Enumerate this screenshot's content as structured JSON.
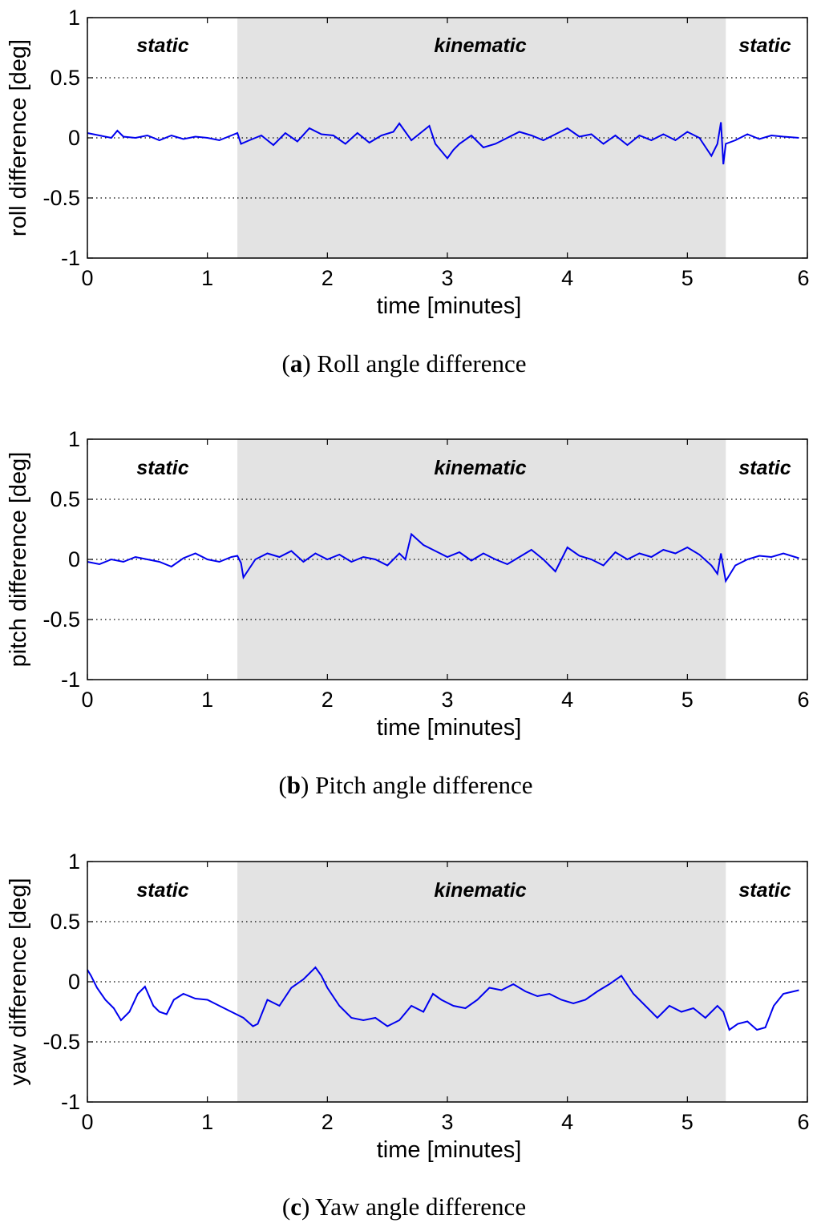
{
  "chart_data": [
    {
      "type": "line",
      "panel_key": "roll",
      "caption_letter": "a",
      "caption_text": "Roll angle difference",
      "xlabel": "time [minutes]",
      "ylabel": "roll difference [deg]",
      "xlim": [
        0,
        6
      ],
      "ylim": [
        -1,
        1
      ],
      "xticks": [
        "0",
        "1",
        "2",
        "3",
        "4",
        "5",
        "6"
      ],
      "yticks": [
        "1",
        "0.5",
        "0",
        "-0.5",
        "-1"
      ],
      "grid_y": [
        0.5,
        0,
        -0.5
      ],
      "line_color": "#0000ee",
      "shaded_region": {
        "x_start": 1.25,
        "x_end": 5.32,
        "color": "#e3e3e3"
      },
      "region_labels": [
        {
          "text": "static",
          "x": 0.63
        },
        {
          "text": "kinematic",
          "x": 3.29
        },
        {
          "text": "static",
          "x": 5.65
        }
      ],
      "series": [
        {
          "name": "roll difference",
          "x": [
            0,
            0.1,
            0.2,
            0.25,
            0.3,
            0.4,
            0.5,
            0.6,
            0.7,
            0.8,
            0.9,
            1.0,
            1.1,
            1.2,
            1.25,
            1.28,
            1.35,
            1.45,
            1.55,
            1.65,
            1.75,
            1.85,
            1.95,
            2.05,
            2.15,
            2.25,
            2.35,
            2.45,
            2.55,
            2.6,
            2.7,
            2.8,
            2.85,
            2.9,
            3.0,
            3.05,
            3.1,
            3.2,
            3.3,
            3.4,
            3.5,
            3.6,
            3.7,
            3.8,
            3.9,
            4.0,
            4.1,
            4.2,
            4.3,
            4.4,
            4.5,
            4.6,
            4.7,
            4.8,
            4.9,
            5.0,
            5.1,
            5.2,
            5.25,
            5.28,
            5.3,
            5.32,
            5.4,
            5.5,
            5.6,
            5.7,
            5.8,
            5.93
          ],
          "values": [
            0.04,
            0.02,
            0.0,
            0.06,
            0.01,
            0.0,
            0.02,
            -0.02,
            0.02,
            -0.01,
            0.01,
            0.0,
            -0.02,
            0.02,
            0.04,
            -0.05,
            -0.02,
            0.02,
            -0.06,
            0.04,
            -0.03,
            0.08,
            0.03,
            0.02,
            -0.05,
            0.04,
            -0.04,
            0.02,
            0.05,
            0.12,
            -0.02,
            0.06,
            0.1,
            -0.05,
            -0.17,
            -0.1,
            -0.05,
            0.02,
            -0.08,
            -0.05,
            0.0,
            0.05,
            0.02,
            -0.02,
            0.03,
            0.08,
            0.01,
            0.03,
            -0.05,
            0.02,
            -0.06,
            0.02,
            -0.02,
            0.03,
            -0.02,
            0.05,
            0.0,
            -0.15,
            -0.05,
            0.13,
            -0.22,
            -0.05,
            -0.02,
            0.03,
            -0.01,
            0.02,
            0.01,
            0.0
          ]
        }
      ]
    },
    {
      "type": "line",
      "panel_key": "pitch",
      "caption_letter": "b",
      "caption_text": "Pitch angle difference",
      "xlabel": "time [minutes]",
      "ylabel": "pitch difference [deg]",
      "xlim": [
        0,
        6
      ],
      "ylim": [
        -1,
        1
      ],
      "xticks": [
        "0",
        "1",
        "2",
        "3",
        "4",
        "5",
        "6"
      ],
      "yticks": [
        "1",
        "0.5",
        "0",
        "-0.5",
        "-1"
      ],
      "grid_y": [
        0.5,
        0,
        -0.5
      ],
      "line_color": "#0000ee",
      "shaded_region": {
        "x_start": 1.25,
        "x_end": 5.32,
        "color": "#e3e3e3"
      },
      "region_labels": [
        {
          "text": "static",
          "x": 0.63
        },
        {
          "text": "kinematic",
          "x": 3.29
        },
        {
          "text": "static",
          "x": 5.65
        }
      ],
      "series": [
        {
          "name": "pitch difference",
          "x": [
            0,
            0.1,
            0.2,
            0.3,
            0.4,
            0.5,
            0.6,
            0.7,
            0.8,
            0.9,
            1.0,
            1.1,
            1.2,
            1.25,
            1.28,
            1.3,
            1.4,
            1.5,
            1.6,
            1.7,
            1.8,
            1.9,
            2.0,
            2.1,
            2.2,
            2.3,
            2.4,
            2.5,
            2.6,
            2.65,
            2.7,
            2.8,
            2.9,
            3.0,
            3.1,
            3.2,
            3.3,
            3.4,
            3.5,
            3.6,
            3.7,
            3.8,
            3.9,
            4.0,
            4.1,
            4.2,
            4.3,
            4.4,
            4.5,
            4.6,
            4.7,
            4.8,
            4.9,
            5.0,
            5.1,
            5.2,
            5.25,
            5.28,
            5.32,
            5.4,
            5.5,
            5.6,
            5.7,
            5.8,
            5.93
          ],
          "values": [
            -0.02,
            -0.04,
            0.0,
            -0.02,
            0.02,
            0.0,
            -0.02,
            -0.06,
            0.01,
            0.05,
            0.0,
            -0.02,
            0.02,
            0.03,
            -0.03,
            -0.15,
            0.0,
            0.05,
            0.02,
            0.07,
            -0.02,
            0.05,
            0.0,
            0.04,
            -0.02,
            0.02,
            0.0,
            -0.05,
            0.05,
            0.0,
            0.21,
            0.12,
            0.07,
            0.02,
            0.06,
            -0.01,
            0.05,
            0.0,
            -0.04,
            0.02,
            0.08,
            0.0,
            -0.1,
            0.1,
            0.03,
            0.0,
            -0.05,
            0.06,
            0.0,
            0.05,
            0.02,
            0.08,
            0.05,
            0.1,
            0.04,
            -0.05,
            -0.12,
            0.05,
            -0.18,
            -0.05,
            0.0,
            0.03,
            0.02,
            0.05,
            0.01
          ]
        }
      ]
    },
    {
      "type": "line",
      "panel_key": "yaw",
      "caption_letter": "c",
      "caption_text": "Yaw angle difference",
      "xlabel": "time [minutes]",
      "ylabel": "yaw difference [deg]",
      "xlim": [
        0,
        6
      ],
      "ylim": [
        -1,
        1
      ],
      "xticks": [
        "0",
        "1",
        "2",
        "3",
        "4",
        "5",
        "6"
      ],
      "yticks": [
        "1",
        "0.5",
        "0",
        "-0.5",
        "-1"
      ],
      "grid_y": [
        0.5,
        0,
        -0.5
      ],
      "line_color": "#0000ee",
      "shaded_region": {
        "x_start": 1.25,
        "x_end": 5.32,
        "color": "#e3e3e3"
      },
      "region_labels": [
        {
          "text": "static",
          "x": 0.63
        },
        {
          "text": "kinematic",
          "x": 3.29
        },
        {
          "text": "static",
          "x": 5.65
        }
      ],
      "series": [
        {
          "name": "yaw difference",
          "x": [
            0,
            0.03,
            0.08,
            0.15,
            0.22,
            0.28,
            0.35,
            0.42,
            0.48,
            0.55,
            0.6,
            0.66,
            0.72,
            0.8,
            0.9,
            1.0,
            1.1,
            1.2,
            1.3,
            1.38,
            1.42,
            1.5,
            1.6,
            1.7,
            1.8,
            1.9,
            1.95,
            2.0,
            2.1,
            2.2,
            2.3,
            2.4,
            2.5,
            2.6,
            2.7,
            2.8,
            2.88,
            2.95,
            3.05,
            3.15,
            3.25,
            3.35,
            3.45,
            3.55,
            3.65,
            3.75,
            3.85,
            3.95,
            4.05,
            4.15,
            4.25,
            4.35,
            4.45,
            4.55,
            4.65,
            4.75,
            4.85,
            4.95,
            5.05,
            5.15,
            5.25,
            5.3,
            5.35,
            5.42,
            5.5,
            5.58,
            5.65,
            5.72,
            5.8,
            5.93
          ],
          "values": [
            0.1,
            0.05,
            -0.05,
            -0.15,
            -0.22,
            -0.32,
            -0.25,
            -0.1,
            -0.04,
            -0.2,
            -0.25,
            -0.27,
            -0.15,
            -0.1,
            -0.14,
            -0.15,
            -0.2,
            -0.25,
            -0.3,
            -0.37,
            -0.35,
            -0.15,
            -0.2,
            -0.05,
            0.02,
            0.12,
            0.05,
            -0.05,
            -0.2,
            -0.3,
            -0.32,
            -0.3,
            -0.37,
            -0.32,
            -0.2,
            -0.25,
            -0.1,
            -0.15,
            -0.2,
            -0.22,
            -0.15,
            -0.05,
            -0.07,
            -0.02,
            -0.08,
            -0.12,
            -0.1,
            -0.15,
            -0.18,
            -0.15,
            -0.08,
            -0.02,
            0.05,
            -0.1,
            -0.2,
            -0.3,
            -0.2,
            -0.25,
            -0.22,
            -0.3,
            -0.2,
            -0.25,
            -0.4,
            -0.35,
            -0.33,
            -0.4,
            -0.38,
            -0.2,
            -0.1,
            -0.07
          ]
        }
      ]
    }
  ]
}
